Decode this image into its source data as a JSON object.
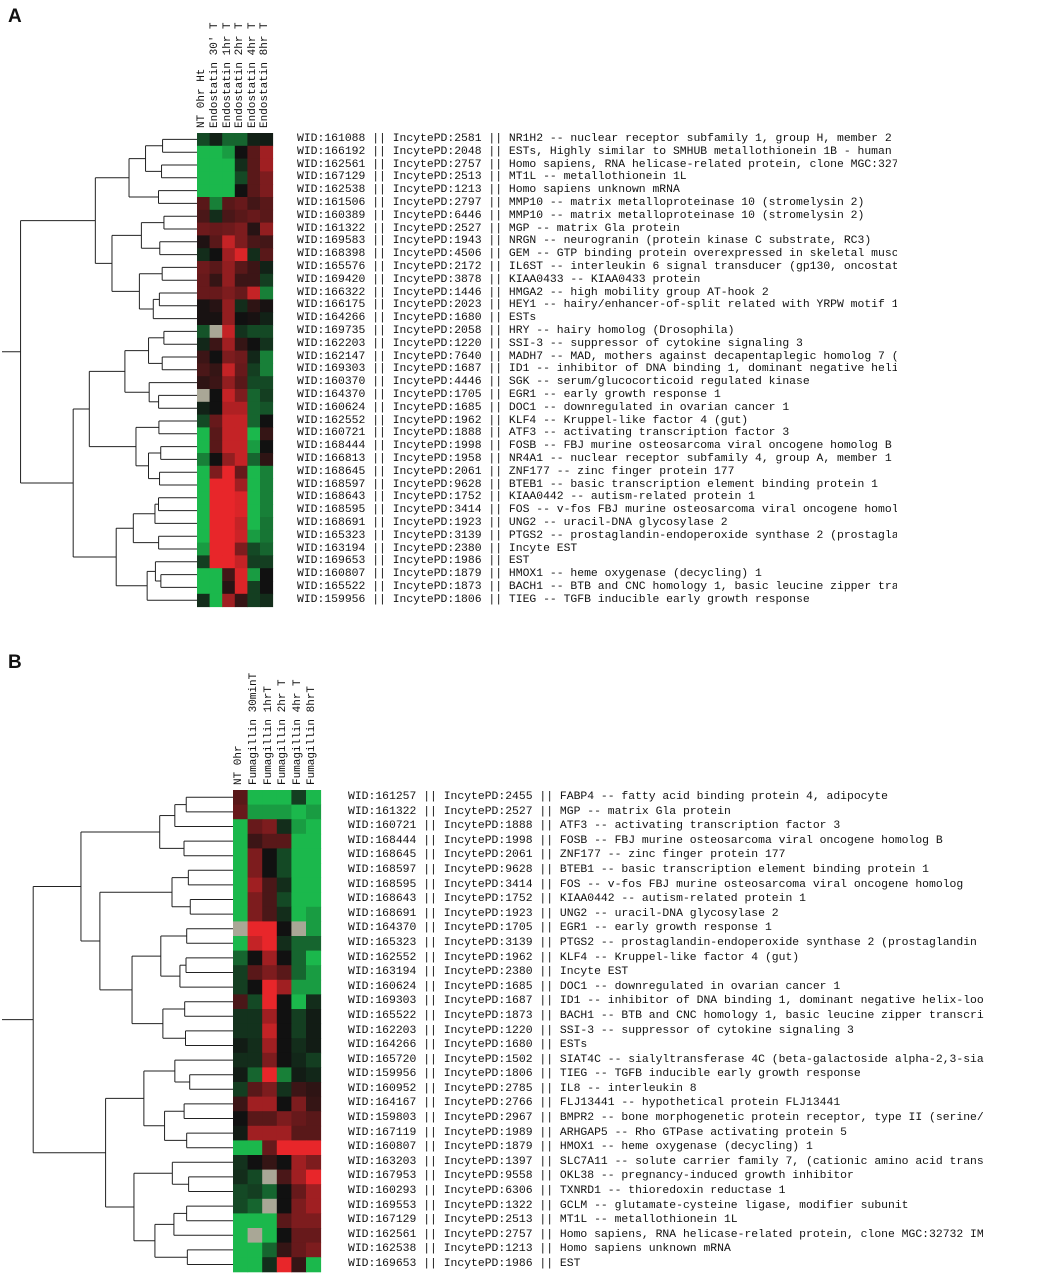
{
  "colors": {
    "up": "#e8262a",
    "down": "#1bb84c",
    "zero": "#111111",
    "missing": "#a9a796",
    "tree": "#222222"
  },
  "chart_data": [
    {
      "type": "heatmap",
      "panel": "A",
      "columns": [
        "NT 0hr Ht",
        "Endostatin 30' T",
        "Endostatin 1hr T",
        "Endostatin 2hr T",
        "Endostatin 4hr T",
        "Endostatin 8hr T"
      ],
      "rows": [
        "WID:161088 || IncytePD:2581 || NR1H2 -- nuclear receptor subfamily 1, group H, member 2",
        "WID:166192 || IncytePD:2048 || ESTs, Highly similar to SMHUB metallothionein 1B - human [H.s",
        "WID:162561 || IncytePD:2757 || Homo sapiens, RNA helicase-related protein, clone MGC:32732 IM",
        "WID:167129 || IncytePD:2513 || MT1L -- metallothionein 1L",
        "WID:162538 || IncytePD:1213 || Homo sapiens unknown mRNA",
        "WID:161506 || IncytePD:2797 || MMP10 -- matrix metalloproteinase 10 (stromelysin 2)",
        "WID:160389 || IncytePD:6446 || MMP10 -- matrix metalloproteinase 10 (stromelysin 2)",
        "WID:161322 || IncytePD:2527 || MGP -- matrix Gla protein",
        "WID:169583 || IncytePD:1943 || NRGN -- neurogranin (protein kinase C substrate, RC3)",
        "WID:168398 || IncytePD:4506 || GEM -- GTP binding protein overexpressed in skeletal muscle",
        "WID:165576 || IncytePD:2172 || IL6ST -- interleukin 6 signal transducer (gp130, oncostatin M",
        "WID:169420 || IncytePD:3878 || KIAA0433 -- KIAA0433 protein",
        "WID:166322 || IncytePD:1446 || HMGA2 -- high mobility group AT-hook 2",
        "WID:166175 || IncytePD:2023 || HEY1 -- hairy/enhancer-of-split related with YRPW motif 1",
        "WID:164266 || IncytePD:1680 || ESTs",
        "WID:169735 || IncytePD:2058 || HRY -- hairy homolog (Drosophila)",
        "WID:162203 || IncytePD:1220 || SSI-3 -- suppressor of cytokine signaling 3",
        "WID:162147 || IncytePD:7640 || MADH7 -- MAD, mothers against decapentaplegic homolog 7 (Droso",
        "WID:169303 || IncytePD:1687 || ID1 -- inhibitor of DNA binding 1, dominant negative helix-loo",
        "WID:160370 || IncytePD:4446 || SGK -- serum/glucocorticoid regulated kinase",
        "WID:164370 || IncytePD:1705 || EGR1 -- early growth response 1",
        "WID:160624 || IncytePD:1685 || DOC1 -- downregulated in ovarian cancer 1",
        "WID:162552 || IncytePD:1962 || KLF4 -- Kruppel-like factor 4 (gut)",
        "WID:160721 || IncytePD:1888 || ATF3 -- activating transcription factor 3",
        "WID:168444 || IncytePD:1998 || FOSB -- FBJ murine osteosarcoma viral oncogene homolog B",
        "WID:166813 || IncytePD:1958 || NR4A1 -- nuclear receptor subfamily 4, group A, member 1",
        "WID:168645 || IncytePD:2061 || ZNF177 -- zinc finger protein 177",
        "WID:168597 || IncytePD:9628 || BTEB1 -- basic transcription element binding protein 1",
        "WID:168643 || IncytePD:1752 || KIAA0442 -- autism-related protein 1",
        "WID:168595 || IncytePD:3414 || FOS -- v-fos FBJ murine osteosarcoma viral oncogene homolog",
        "WID:168691 || IncytePD:1923 || UNG2 -- uracil-DNA glycosylase 2",
        "WID:165323 || IncytePD:3139 || PTGS2 -- prostaglandin-endoperoxide synthase 2 (prostaglandin",
        "WID:163194 || IncytePD:2380 || Incyte EST",
        "WID:169653 || IncytePD:1986 || EST",
        "WID:160807 || IncytePD:1879 || HMOX1 -- heme oxygenase (decycling) 1",
        "WID:165522 || IncytePD:1873 || BACH1 -- BTB and CNC homology 1, basic leucine zipper transcri",
        "WID:159956 || IncytePD:1806 || TIEG -- TGFB inducible early growth response"
      ],
      "values": [
        [
          -1,
          -0.3,
          -1.5,
          -1.5,
          -0.3,
          -0.2
        ],
        [
          -3,
          -3,
          -2.5,
          0,
          1,
          2
        ],
        [
          -3,
          -3,
          -3,
          -0.5,
          1,
          2
        ],
        [
          -3,
          -3,
          -3,
          -1,
          1,
          1.5
        ],
        [
          -3,
          -3,
          -3,
          0,
          1,
          1.5
        ],
        [
          1,
          -2,
          1,
          1.2,
          0.7,
          1
        ],
        [
          0.8,
          -0.5,
          0.8,
          1,
          1.2,
          1
        ],
        [
          1.3,
          1.2,
          1.3,
          1.5,
          0.3,
          1.8
        ],
        [
          0.2,
          1,
          2.5,
          1.5,
          0.8,
          0.7
        ],
        [
          -0.5,
          0,
          2,
          2.8,
          -0.5,
          1
        ],
        [
          1.3,
          1,
          1.8,
          1,
          0.6,
          -0.3
        ],
        [
          1.2,
          0.5,
          1.8,
          0.6,
          0.6,
          -0.8
        ],
        [
          1.2,
          1.2,
          1.5,
          1.2,
          2.5,
          -2
        ],
        [
          0.1,
          0.3,
          1.8,
          -0.5,
          0.4,
          0.1
        ],
        [
          0.1,
          0.1,
          1.8,
          0,
          0.1,
          -0.3
        ],
        [
          -1.2,
          null,
          2.5,
          -0.6,
          -1,
          -1
        ],
        [
          -0.4,
          0.6,
          2,
          0.5,
          0,
          -0.6
        ],
        [
          0.6,
          0,
          1.5,
          1.3,
          -0.4,
          -2
        ],
        [
          0.8,
          0.5,
          2.5,
          1.2,
          -0.8,
          -2
        ],
        [
          0.4,
          0.6,
          1.8,
          1,
          -1,
          -1
        ],
        [
          null,
          0,
          2.5,
          1.5,
          -1.5,
          -0.8
        ],
        [
          -0.3,
          0,
          2.2,
          2.2,
          -1.5,
          -1.2
        ],
        [
          -1,
          1.2,
          2.5,
          2.5,
          -1.5,
          0
        ],
        [
          -3,
          1,
          2.5,
          2.5,
          -3,
          0.5
        ],
        [
          -3,
          1,
          2.5,
          2.5,
          -2.5,
          0
        ],
        [
          -2,
          0,
          1.8,
          2.5,
          -1.5,
          0.4
        ],
        [
          -3,
          1.5,
          3,
          1.2,
          -3,
          -2
        ],
        [
          -3,
          3,
          3,
          2,
          -3,
          -2
        ],
        [
          -3,
          3,
          3,
          2.8,
          -3,
          -2
        ],
        [
          -3,
          3,
          3,
          2.8,
          -3,
          -2
        ],
        [
          -3,
          3,
          3,
          2.5,
          -3,
          -1.8
        ],
        [
          -3,
          3,
          3,
          2.6,
          -2.5,
          -1.8
        ],
        [
          -2.5,
          3,
          3,
          1.5,
          -1,
          -1.5
        ],
        [
          -0.8,
          3,
          3,
          2.5,
          -0.8,
          -0.8
        ],
        [
          -3,
          -3,
          0.7,
          2.8,
          -2.5,
          0
        ],
        [
          -3,
          -3,
          0.3,
          2.8,
          -0.8,
          0
        ],
        [
          -0.5,
          -3,
          2,
          0.5,
          -0.8,
          -0.5
        ]
      ],
      "value_range": [
        -3,
        3
      ]
    },
    {
      "type": "heatmap",
      "panel": "B",
      "columns": [
        "NT 0hr",
        "Fumagillin 30minT",
        "Fumagillin 1hrT",
        "Fumagillin 2hr T",
        "Fumagillin 4hr T",
        "Fumagillin 8hrT"
      ],
      "rows": [
        "WID:161257 || IncytePD:2455 || FABP4 -- fatty acid binding protein 4, adipocyte",
        "WID:161322 || IncytePD:2527 || MGP -- matrix Gla protein",
        "WID:160721 || IncytePD:1888 || ATF3 -- activating transcription factor 3",
        "WID:168444 || IncytePD:1998 || FOSB -- FBJ murine osteosarcoma viral oncogene homolog B",
        "WID:168645 || IncytePD:2061 || ZNF177 -- zinc finger protein 177",
        "WID:168597 || IncytePD:9628 || BTEB1 -- basic transcription element binding protein 1",
        "WID:168595 || IncytePD:3414 || FOS -- v-fos FBJ murine osteosarcoma viral oncogene homolog",
        "WID:168643 || IncytePD:1752 || KIAA0442 -- autism-related protein 1",
        "WID:168691 || IncytePD:1923 || UNG2 -- uracil-DNA glycosylase 2",
        "WID:164370 || IncytePD:1705 || EGR1 -- early growth response 1",
        "WID:165323 || IncytePD:3139 || PTGS2 -- prostaglandin-endoperoxide synthase 2 (prostaglandin",
        "WID:162552 || IncytePD:1962 || KLF4 -- Kruppel-like factor 4 (gut)",
        "WID:163194 || IncytePD:2380 || Incyte EST",
        "WID:160624 || IncytePD:1685 || DOC1 -- downregulated in ovarian cancer 1",
        "WID:169303 || IncytePD:1687 || ID1 -- inhibitor of DNA binding 1, dominant negative helix-loo",
        "WID:165522 || IncytePD:1873 || BACH1 -- BTB and CNC homology 1, basic leucine zipper transcri",
        "WID:162203 || IncytePD:1220 || SSI-3 -- suppressor of cytokine signaling 3",
        "WID:164266 || IncytePD:1680 || ESTs",
        "WID:165720 || IncytePD:1502 || SIAT4C -- sialyltransferase 4C (beta-galactoside alpha-2,3-sia",
        "WID:159956 || IncytePD:1806 || TIEG -- TGFB inducible early growth response",
        "WID:160952 || IncytePD:2785 || IL8 -- interleukin 8",
        "WID:164167 || IncytePD:2766 || FLJ13441 -- hypothetical protein FLJ13441",
        "WID:159803 || IncytePD:2967 || BMPR2 -- bone morphogenetic protein receptor, type II (serine/",
        "WID:167119 || IncytePD:1989 || ARHGAP5 -- Rho GTPase activating protein 5",
        "WID:160807 || IncytePD:1879 || HMOX1 -- heme oxygenase (decycling) 1",
        "WID:163203 || IncytePD:1397 || SLC7A11 -- solute carrier family 7, (cationic amino acid trans",
        "WID:167953 || IncytePD:9558 || OKL38 -- pregnancy-induced growth inhibitor",
        "WID:160293 || IncytePD:6306 || TXNRD1 -- thioredoxin reductase 1",
        "WID:169553 || IncytePD:1322 || GCLM -- glutamate-cysteine ligase, modifier subunit",
        "WID:167129 || IncytePD:2513 || MT1L -- metallothionein 1L",
        "WID:162561 || IncytePD:2757 || Homo sapiens, RNA helicase-related protein, clone MGC:32732 IM",
        "WID:162538 || IncytePD:1213 || Homo sapiens unknown mRNA",
        "WID:169653 || IncytePD:1986 || EST"
      ],
      "values": [
        [
          1,
          -3,
          -3,
          -3,
          -0.8,
          -3
        ],
        [
          1.2,
          -2.5,
          -2.5,
          -2.5,
          -3,
          -2.5
        ],
        [
          -3,
          1.2,
          1.5,
          -0.5,
          -2.5,
          -3
        ],
        [
          -3,
          0.6,
          1,
          1,
          -3,
          -3
        ],
        [
          -3,
          1.5,
          0,
          -1,
          -3,
          -3
        ],
        [
          -3,
          1.5,
          0,
          -1,
          -3,
          -3
        ],
        [
          -3,
          2,
          0.8,
          -0.5,
          -3,
          -3
        ],
        [
          -3,
          1.5,
          0.8,
          -1,
          -3,
          -3
        ],
        [
          -3,
          1.5,
          0.8,
          -0.5,
          -3,
          -2.5
        ],
        [
          null,
          3,
          3,
          0,
          null,
          -2.5
        ],
        [
          -3,
          2.5,
          3,
          -0.5,
          -1.5,
          -1.5
        ],
        [
          -1.5,
          0,
          2,
          0,
          -1.5,
          -3
        ],
        [
          -0.8,
          1,
          1.5,
          1,
          -1.5,
          -2.5
        ],
        [
          -0.8,
          0,
          3,
          2,
          -2.5,
          -2.5
        ],
        [
          0.8,
          -1,
          3,
          0,
          -3,
          -0.5
        ],
        [
          -0.6,
          -0.6,
          2,
          0,
          -0.8,
          -0.2
        ],
        [
          -0.6,
          -0.6,
          2.5,
          0,
          -0.8,
          -0.2
        ],
        [
          -0.2,
          -0.5,
          2,
          0,
          -0.5,
          -0.2
        ],
        [
          -0.5,
          -0.5,
          1.5,
          0,
          -0.4,
          -0.8
        ],
        [
          -0.2,
          -1.5,
          3,
          -2,
          -0.2,
          -0.4
        ],
        [
          -0.8,
          1,
          1.5,
          -0.6,
          0.6,
          0.4
        ],
        [
          0.6,
          2,
          2,
          0,
          1.5,
          0.5
        ],
        [
          0,
          1,
          1,
          1.5,
          1.2,
          1
        ],
        [
          -0.2,
          2,
          2,
          2,
          1,
          1
        ],
        [
          -3,
          -3,
          1.2,
          3,
          3,
          3
        ],
        [
          -0.6,
          0,
          0.5,
          0,
          2,
          1.5
        ],
        [
          -0.5,
          -1,
          null,
          0.8,
          2,
          3
        ],
        [
          -1,
          -0.8,
          -1.5,
          0,
          1.2,
          2
        ],
        [
          -1,
          -1.5,
          null,
          0,
          1.5,
          2
        ],
        [
          -3,
          -3,
          -3,
          1,
          1.5,
          1.5
        ],
        [
          -3,
          null,
          -3,
          0,
          1.2,
          1.2
        ],
        [
          -3,
          -3,
          -1.5,
          0.5,
          1.2,
          1.5
        ],
        [
          -3,
          -3,
          -0.5,
          3,
          0.5,
          -3
        ]
      ],
      "value_range": [
        -3,
        3
      ]
    }
  ],
  "panels": {
    "a_label": "A",
    "b_label": "B"
  }
}
